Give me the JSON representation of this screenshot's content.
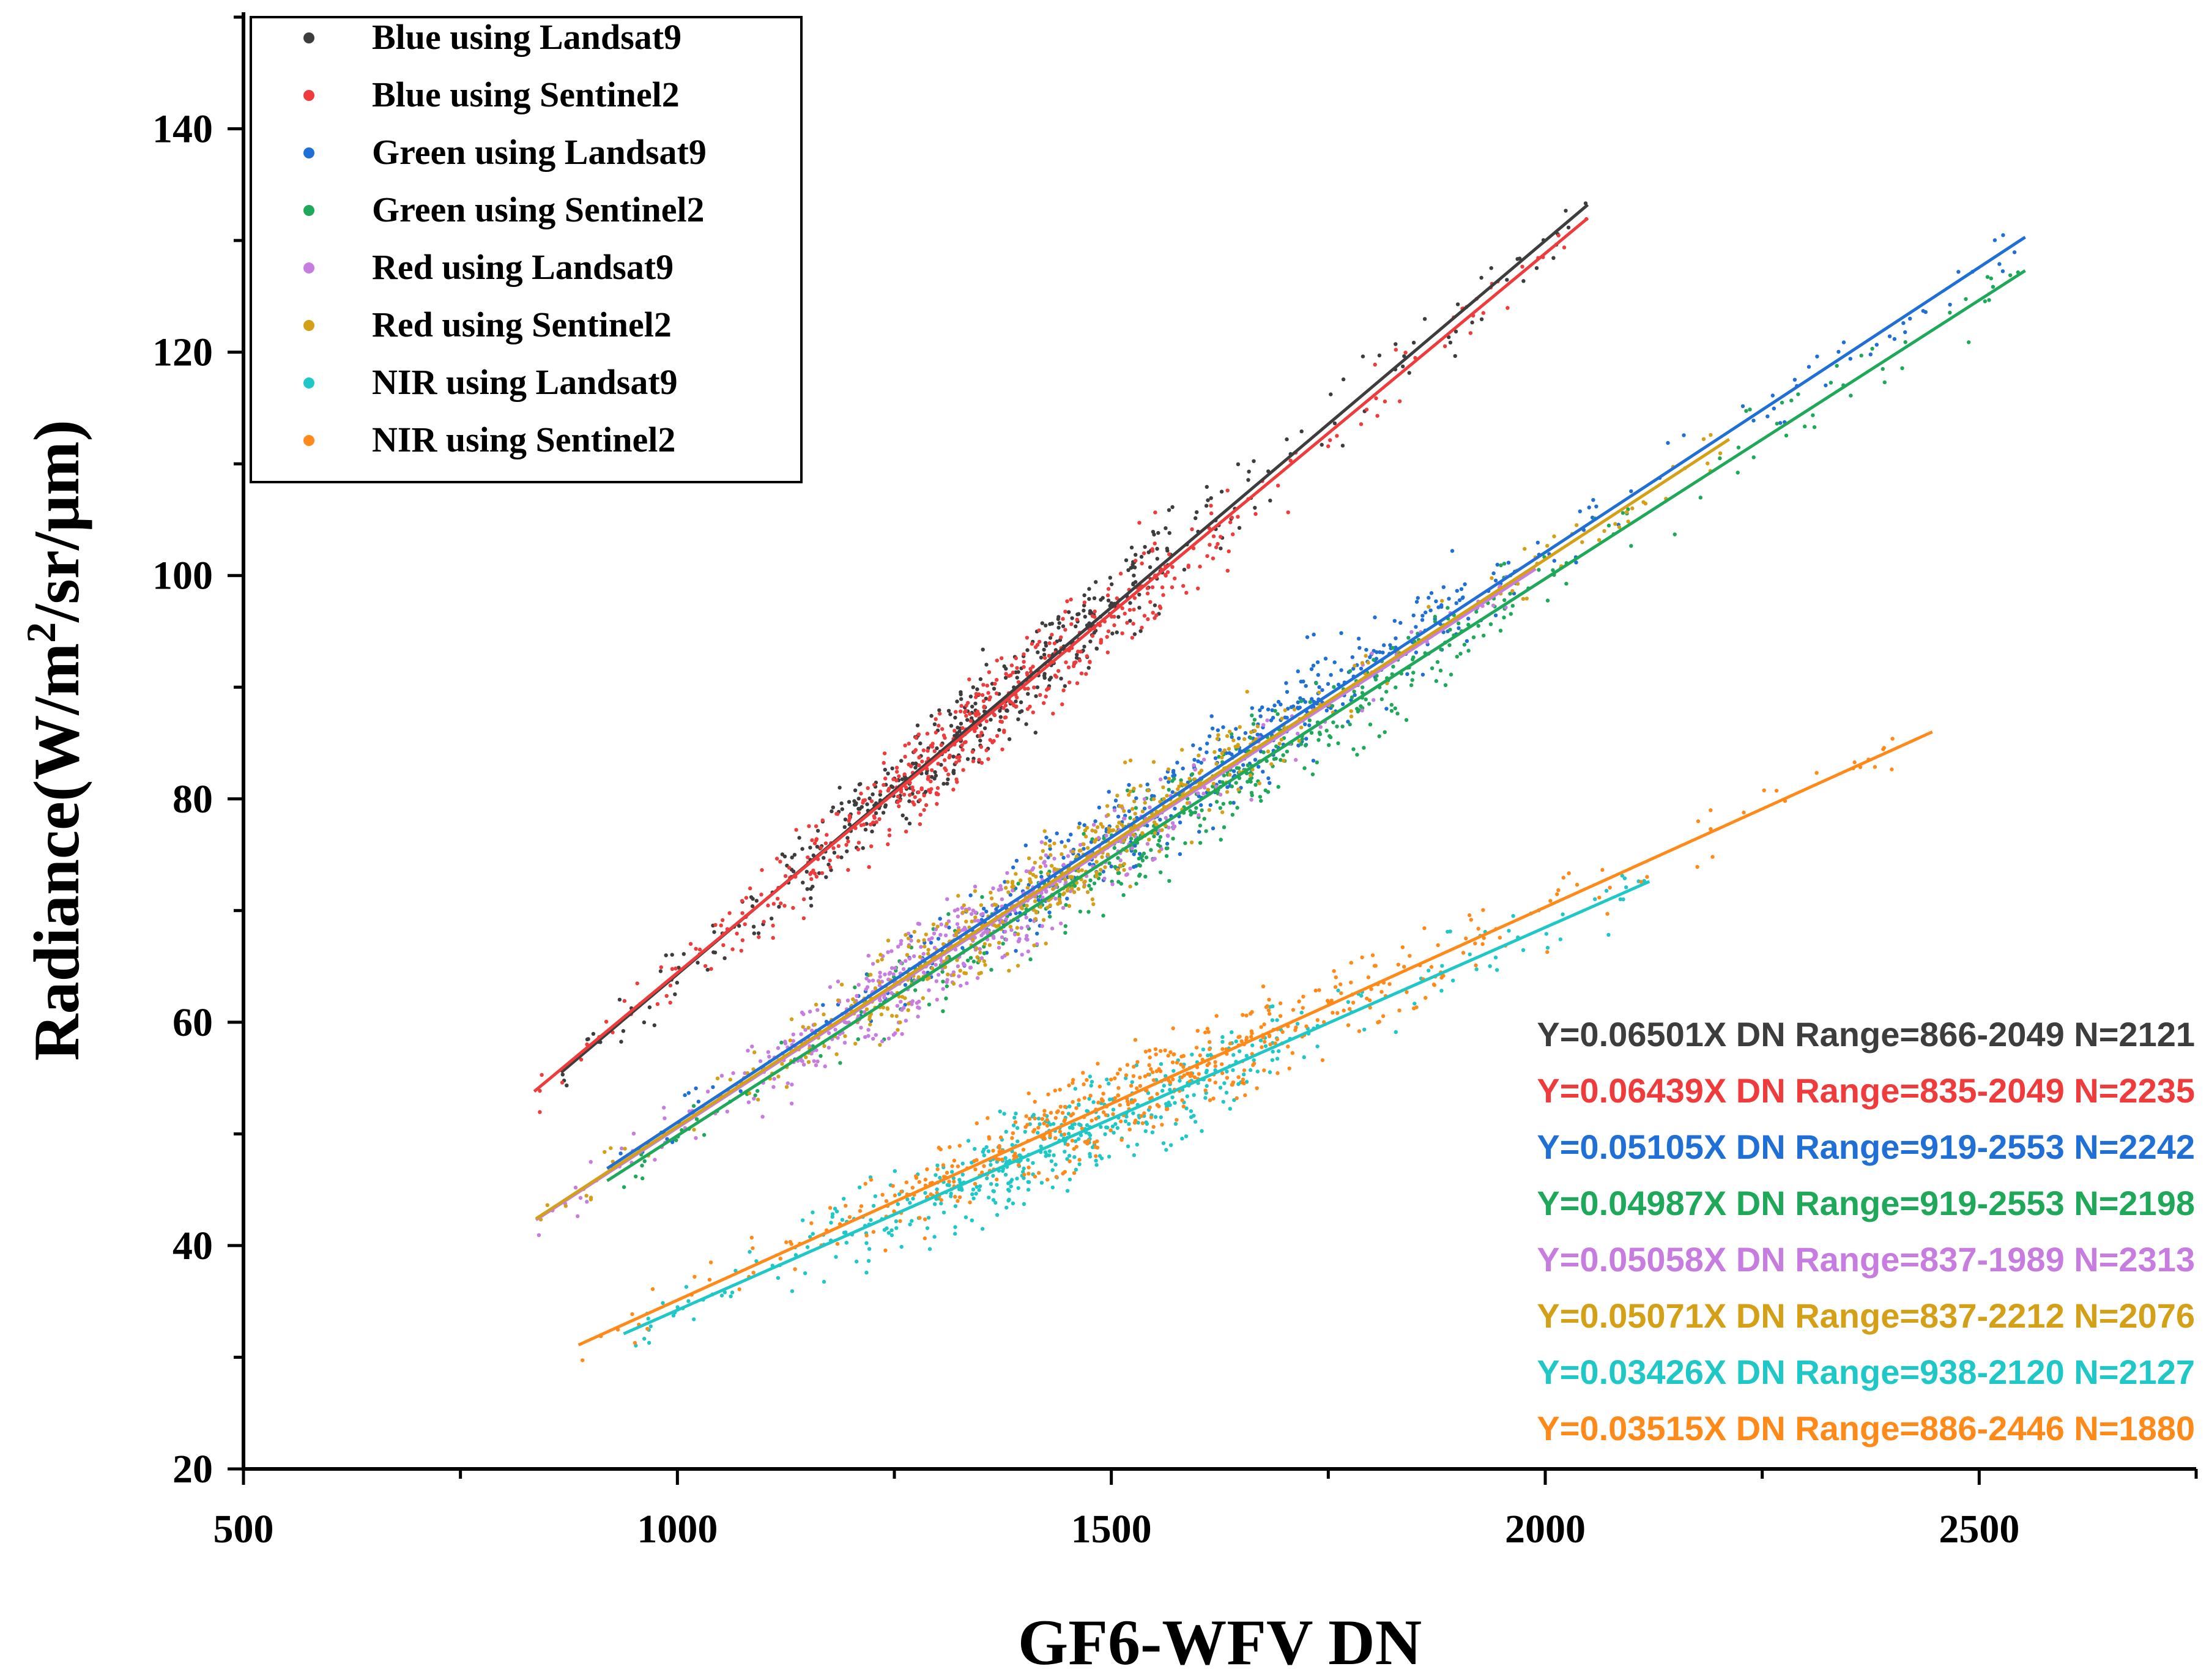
{
  "chart_data": {
    "type": "scatter",
    "title": "",
    "xlabel": "GF6-WFV DN",
    "ylabel_main": "Radiance(W/m",
    "ylabel_sup": "2",
    "ylabel_tail": "/sr/μm)",
    "xlim": [
      500,
      2750
    ],
    "ylim": [
      20,
      150
    ],
    "x_ticks": [
      500,
      1000,
      1500,
      2000,
      2500
    ],
    "y_ticks": [
      20,
      40,
      60,
      80,
      100,
      120,
      140
    ],
    "x_tick_labels": [
      "500",
      "1000",
      "1500",
      "2000",
      "2500"
    ],
    "y_tick_labels": [
      "20",
      "40",
      "60",
      "80",
      "100",
      "120",
      "140"
    ],
    "legend_position": "top-left",
    "series": [
      {
        "name": "Blue using Landsat9",
        "color": "#3d3d3d",
        "slope": 0.06501,
        "intercept": 0,
        "line_x": [
          866,
          2049
        ],
        "line_y": [
          55.5,
          133.2
        ],
        "annotation": "Y=0.06501X DN Range=866-2049 N=2121",
        "n": 2121
      },
      {
        "name": "Blue using Sentinel2",
        "color": "#ef3b3b",
        "slope": 0.06439,
        "intercept": 0,
        "line_x": [
          835,
          2049
        ],
        "line_y": [
          53.8,
          132.0
        ],
        "annotation": "Y=0.06439X DN Range=835-2049 N=2235",
        "n": 2235
      },
      {
        "name": "Green using Landsat9",
        "color": "#1f6fd6",
        "slope": 0.05105,
        "intercept": 0,
        "line_x": [
          919,
          2553
        ],
        "line_y": [
          46.9,
          130.3
        ],
        "annotation": "Y=0.05105X DN Range=919-2553 N=2242",
        "n": 2242
      },
      {
        "name": "Green using Sentinel2",
        "color": "#1fa85a",
        "slope": 0.04987,
        "intercept": 0,
        "line_x": [
          919,
          2553
        ],
        "line_y": [
          45.8,
          127.3
        ],
        "annotation": "Y=0.04987X DN Range=919-2553 N=2198",
        "n": 2198
      },
      {
        "name": "Red using Landsat9",
        "color": "#c77ce0",
        "slope": 0.05058,
        "intercept": 0,
        "line_x": [
          837,
          1989
        ],
        "line_y": [
          42.3,
          100.6
        ],
        "annotation": "Y=0.05058X DN Range=837-1989 N=2313",
        "n": 2313
      },
      {
        "name": "Red using Sentinel2",
        "color": "#d4a017",
        "slope": 0.05071,
        "intercept": 0,
        "line_x": [
          837,
          2212
        ],
        "line_y": [
          42.4,
          112.2
        ],
        "annotation": "Y=0.05071X DN Range=837-2212 N=2076",
        "n": 2076
      },
      {
        "name": "NIR using Landsat9",
        "color": "#1fc7c7",
        "slope": 0.03426,
        "intercept": 0,
        "line_x": [
          938,
          2120
        ],
        "line_y": [
          32.1,
          72.6
        ],
        "annotation": "Y=0.03426X DN Range=938-2120 N=2127",
        "n": 2127
      },
      {
        "name": "NIR using Sentinel2",
        "color": "#ff8a1a",
        "slope": 0.03515,
        "intercept": 0,
        "line_x": [
          886,
          2446
        ],
        "line_y": [
          31.1,
          86.0
        ],
        "annotation": "Y=0.03515X DN Range=886-2446 N=1880",
        "n": 1880
      }
    ]
  }
}
